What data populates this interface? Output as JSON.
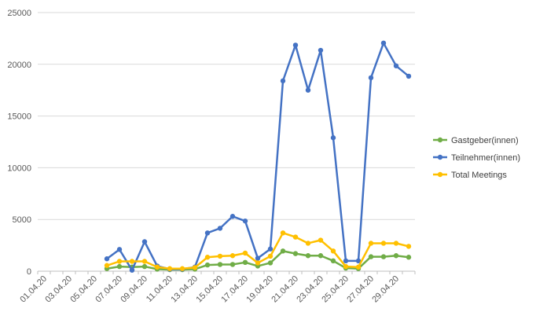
{
  "chart_data": {
    "type": "line",
    "title": "",
    "xlabel": "",
    "ylabel": "",
    "ylim": [
      0,
      25000
    ],
    "yticks": [
      0,
      5000,
      10000,
      15000,
      20000,
      25000
    ],
    "grid": true,
    "legend_position": "right",
    "x": [
      "01.04.20",
      "02.04.20",
      "03.04.20",
      "04.04.20",
      "05.04.20",
      "06.04.20",
      "07.04.20",
      "08.04.20",
      "09.04.20",
      "10.04.20",
      "11.04.20",
      "12.04.20",
      "13.04.20",
      "14.04.20",
      "15.04.20",
      "16.04.20",
      "17.04.20",
      "18.04.20",
      "19.04.20",
      "20.04.20",
      "21.04.20",
      "22.04.20",
      "23.04.20",
      "24.04.20",
      "25.04.20",
      "26.04.20",
      "27.04.20",
      "28.04.20",
      "29.04.20",
      "30.04.20"
    ],
    "x_tick_labels": [
      "01.04.20",
      "03.04.20",
      "05.04.20",
      "07.04.20",
      "09.04.20",
      "11.04.20",
      "13.04.20",
      "15.04.20",
      "17.04.20",
      "19.04.20",
      "21.04.20",
      "23.04.20",
      "25.04.20",
      "27.04.20",
      "29.04.20"
    ],
    "series": [
      {
        "name": "Gastgeber(innen)",
        "color": "#70AD47",
        "values": [
          null,
          null,
          null,
          null,
          null,
          250,
          450,
          400,
          450,
          200,
          150,
          150,
          200,
          600,
          650,
          650,
          850,
          500,
          800,
          1950,
          1700,
          1500,
          1500,
          1000,
          300,
          250,
          1400,
          1400,
          1500,
          1350
        ]
      },
      {
        "name": "Teilnehmer(innen)",
        "color": "#4472C4",
        "values": [
          null,
          null,
          null,
          null,
          null,
          1200,
          2100,
          100,
          2850,
          500,
          200,
          200,
          400,
          3700,
          4150,
          5300,
          4850,
          1250,
          2150,
          18400,
          21850,
          17500,
          21350,
          12900,
          1000,
          1000,
          18700,
          22050,
          19850,
          18850
        ]
      },
      {
        "name": "Total Meetings",
        "color": "#FFC000",
        "values": [
          null,
          null,
          null,
          null,
          null,
          550,
          950,
          950,
          950,
          400,
          250,
          250,
          350,
          1350,
          1450,
          1500,
          1750,
          800,
          1450,
          3700,
          3300,
          2700,
          3000,
          1950,
          450,
          400,
          2700,
          2700,
          2700,
          2400
        ]
      }
    ]
  }
}
